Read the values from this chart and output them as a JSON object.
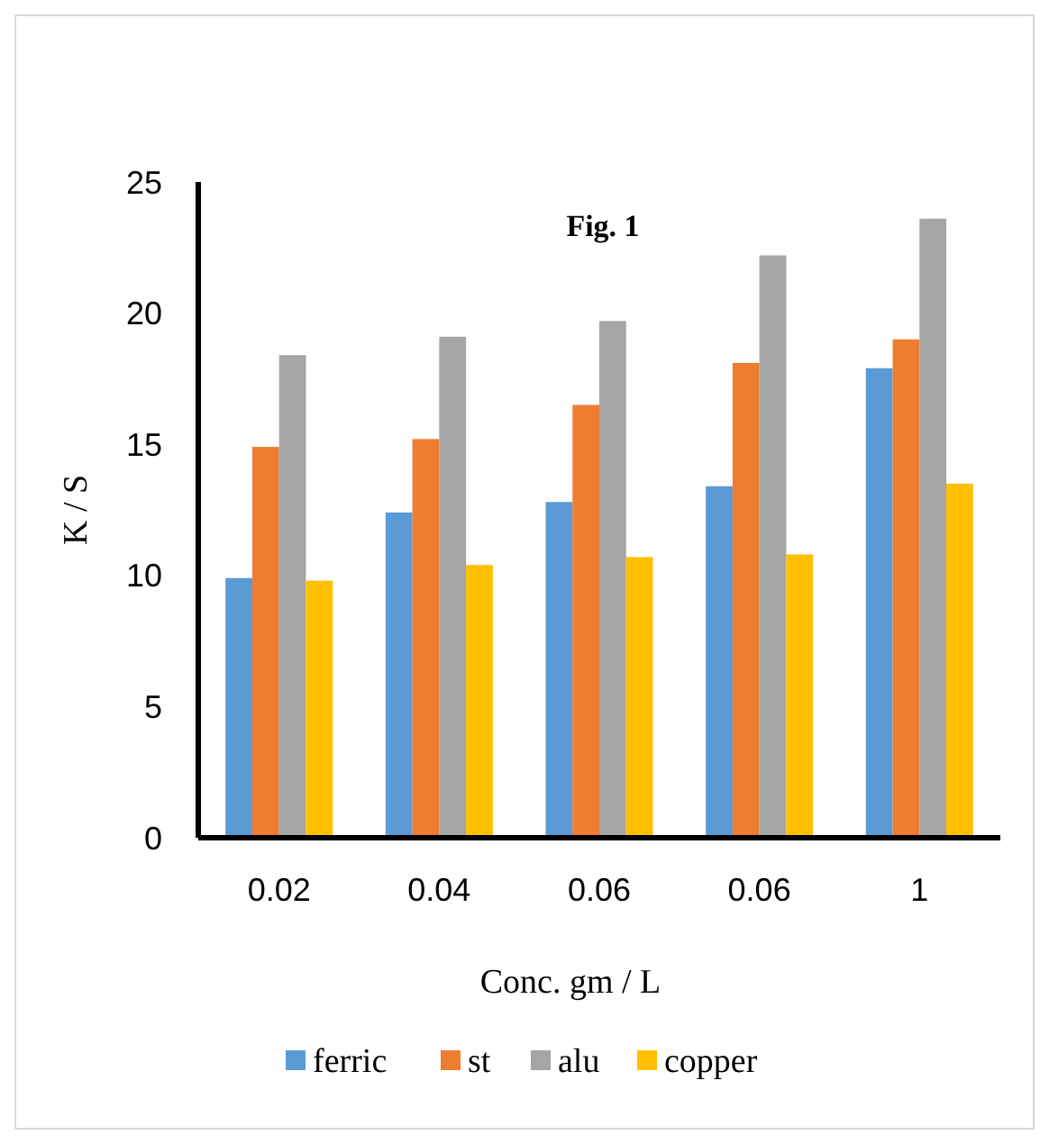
{
  "chart_data": {
    "type": "bar",
    "title": "Fig. 1",
    "xlabel": "Conc. gm / L",
    "ylabel": "K / S",
    "categories": [
      "0.02",
      "0.04",
      "0.06",
      "0.06",
      "1"
    ],
    "series": [
      {
        "name": "ferric",
        "color": "#5b9bd5",
        "values": [
          9.9,
          12.4,
          12.8,
          13.4,
          17.9
        ]
      },
      {
        "name": "st",
        "color": "#ed7d31",
        "values": [
          14.9,
          15.2,
          16.5,
          18.1,
          19.0
        ]
      },
      {
        "name": "alu",
        "color": "#a5a5a5",
        "values": [
          18.4,
          19.1,
          19.7,
          22.2,
          23.6
        ]
      },
      {
        "name": "copper",
        "color": "#ffc000",
        "values": [
          9.8,
          10.4,
          10.7,
          10.8,
          13.5
        ]
      }
    ],
    "ylim": [
      0,
      25
    ],
    "yticks": [
      0,
      5,
      10,
      15,
      20,
      25
    ],
    "grid": false,
    "legend": "bottom"
  }
}
